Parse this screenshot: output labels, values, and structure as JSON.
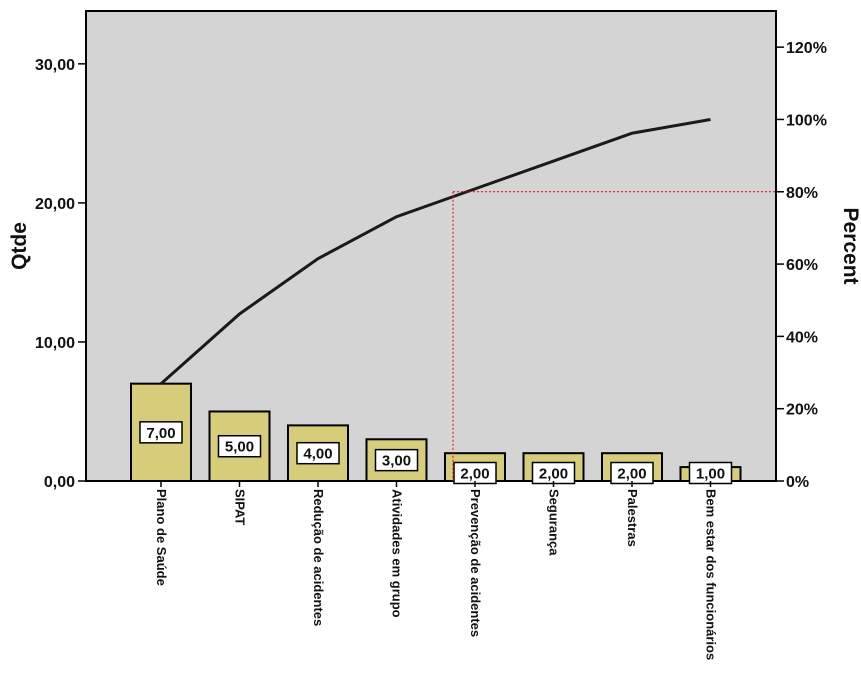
{
  "chart_data": {
    "type": "bar",
    "categories": [
      "Plano de Saúde",
      "SIPAT",
      "Redução de acidentes",
      "Atividades em grupo",
      "Prevenção de acidentes",
      "Segurança",
      "Palestras",
      "Bem estar dos funcionários"
    ],
    "values": [
      7,
      5,
      4,
      3,
      2,
      2,
      2,
      1
    ],
    "value_labels": [
      "7,00",
      "5,00",
      "4,00",
      "3,00",
      "2,00",
      "2,00",
      "2,00",
      "1,00"
    ],
    "cumulative_percent": [
      26.9,
      46.2,
      61.5,
      73.1,
      80.8,
      88.5,
      96.2,
      100
    ],
    "ylabel": "Qtde",
    "y2label": "Percent",
    "ylim": [
      0,
      33.8
    ],
    "y_ticks": [
      0,
      10,
      20,
      30
    ],
    "y_tick_labels": [
      "0,00",
      "10,00",
      "20,00",
      "30,00"
    ],
    "y2lim": [
      0,
      130
    ],
    "y2_ticks": [
      0,
      20,
      40,
      60,
      80,
      100,
      120
    ],
    "y2_tick_labels": [
      "0%",
      "20%",
      "40%",
      "60%",
      "80%",
      "100%",
      "120%"
    ],
    "reference_percent": 80,
    "reference_category_index": 4,
    "grid": false,
    "colors": {
      "plot_background": "#d4d4d4",
      "bar_fill": "#d6cc7a",
      "bar_stroke": "#000000",
      "line": "#1a1a1a",
      "reference_line": "#e8000b"
    }
  }
}
